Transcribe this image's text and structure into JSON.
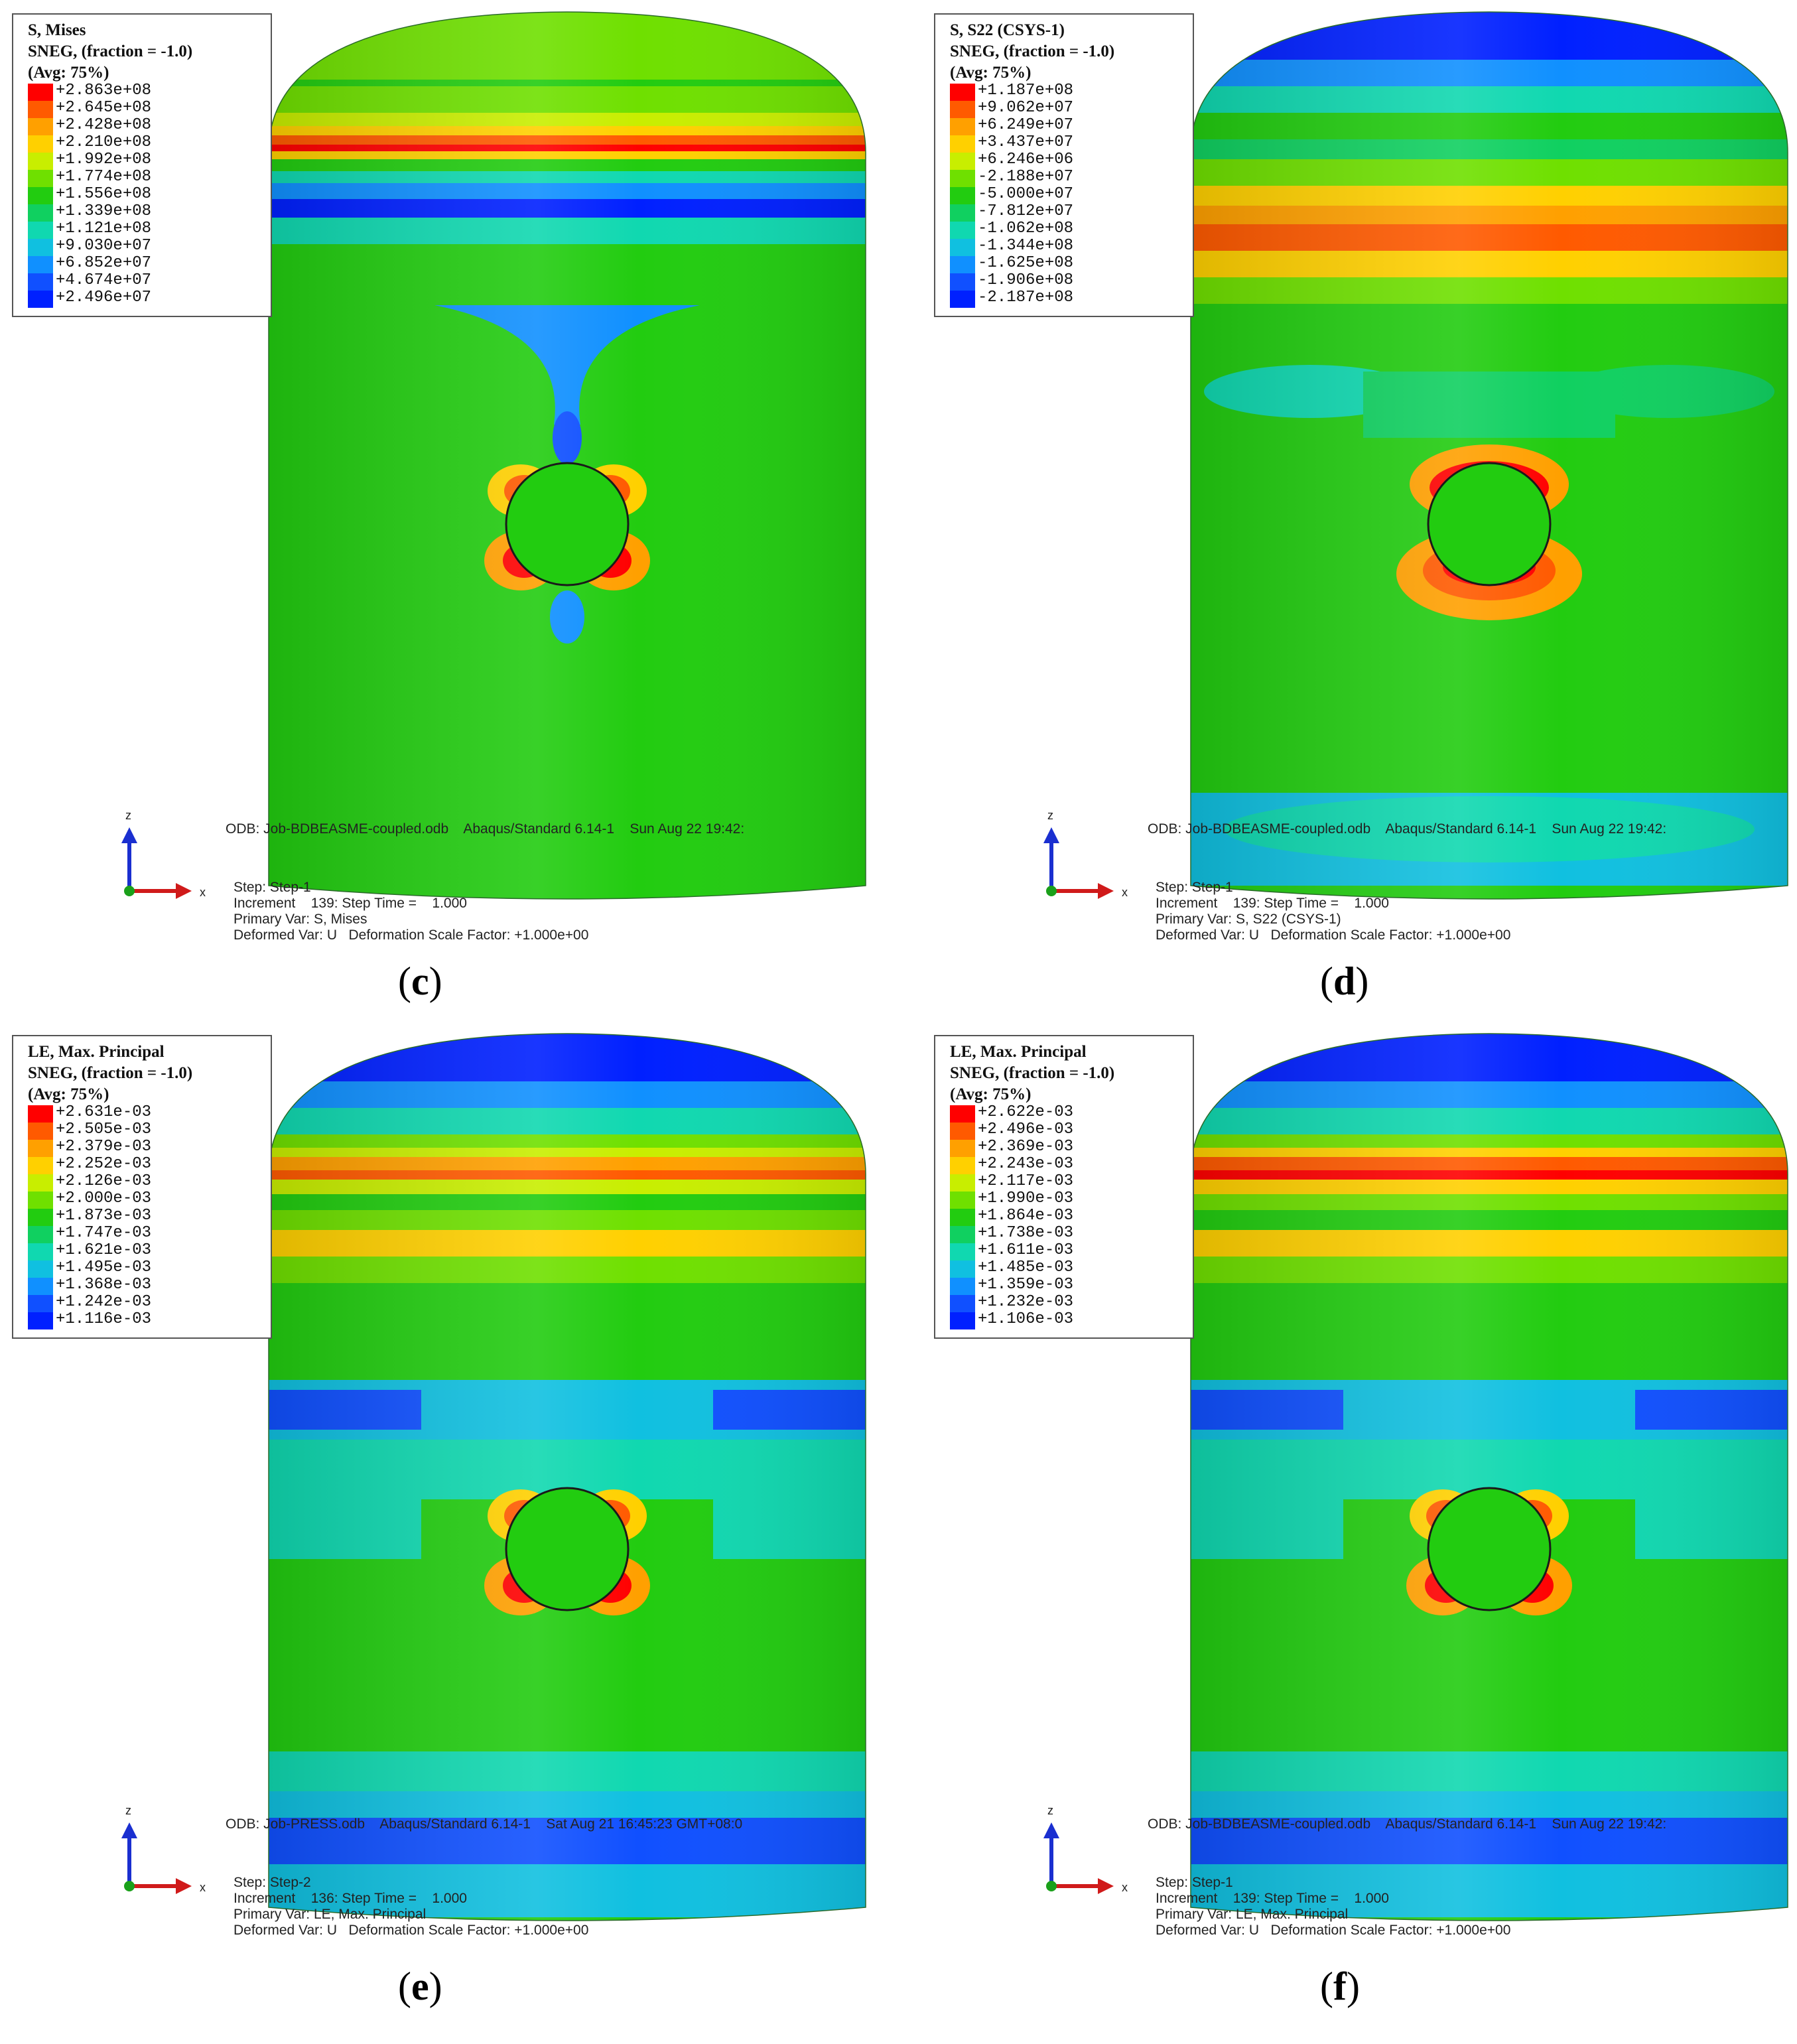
{
  "colors": [
    "#ff0000",
    "#ff5a00",
    "#ffa000",
    "#ffd000",
    "#c8ee00",
    "#6fe000",
    "#22cc10",
    "#10d060",
    "#10d8b0",
    "#10c0e0",
    "#1090ff",
    "#1050ff",
    "#0020ff"
  ],
  "panels": [
    {
      "id": "c",
      "legend": {
        "title1": "S, Mises",
        "title2": "SNEG, (fraction = -1.0)",
        "title3": "(Avg: 75%)",
        "values": [
          "+2.863e+08",
          "+2.645e+08",
          "+2.428e+08",
          "+2.210e+08",
          "+1.992e+08",
          "+1.774e+08",
          "+1.556e+08",
          "+1.339e+08",
          "+1.121e+08",
          "+9.030e+07",
          "+6.852e+07",
          "+4.674e+07",
          "+2.496e+07"
        ]
      },
      "odb": "ODB: Job-BDBEASME-coupled.odb    Abaqus/Standard 6.14-1    Sun Aug 22 19:42:",
      "step": "Step: Step-1",
      "increment": "Increment    139: Step Time =    1.000",
      "primary": "Primary Var: S, Mises",
      "deformed": "Deformed Var: U   Deformation Scale Factor: +1.000e+00",
      "caption": "c",
      "axis_z": "z",
      "axis_x": "x"
    },
    {
      "id": "d",
      "legend": {
        "title1": "S, S22 (CSYS-1)",
        "title2": "SNEG, (fraction = -1.0)",
        "title3": "(Avg: 75%)",
        "values": [
          "+1.187e+08",
          "+9.062e+07",
          "+6.249e+07",
          "+3.437e+07",
          "+6.246e+06",
          "-2.188e+07",
          "-5.000e+07",
          "-7.812e+07",
          "-1.062e+08",
          "-1.344e+08",
          "-1.625e+08",
          "-1.906e+08",
          "-2.187e+08"
        ]
      },
      "odb": "ODB: Job-BDBEASME-coupled.odb    Abaqus/Standard 6.14-1    Sun Aug 22 19:42:",
      "step": "Step: Step-1",
      "increment": "Increment    139: Step Time =    1.000",
      "primary": "Primary Var: S, S22 (CSYS-1)",
      "deformed": "Deformed Var: U   Deformation Scale Factor: +1.000e+00",
      "caption": "d",
      "axis_z": "z",
      "axis_x": "x"
    },
    {
      "id": "e",
      "legend": {
        "title1": "LE, Max. Principal",
        "title2": "SNEG, (fraction = -1.0)",
        "title3": "(Avg: 75%)",
        "values": [
          "+2.631e-03",
          "+2.505e-03",
          "+2.379e-03",
          "+2.252e-03",
          "+2.126e-03",
          "+2.000e-03",
          "+1.873e-03",
          "+1.747e-03",
          "+1.621e-03",
          "+1.495e-03",
          "+1.368e-03",
          "+1.242e-03",
          "+1.116e-03"
        ]
      },
      "odb": "ODB: Job-PRESS.odb    Abaqus/Standard 6.14-1    Sat Aug 21 16:45:23 GMT+08:0",
      "step": "Step: Step-2",
      "increment": "Increment    136: Step Time =    1.000",
      "primary": "Primary Var: LE, Max. Principal",
      "deformed": "Deformed Var: U   Deformation Scale Factor: +1.000e+00",
      "caption": "e",
      "axis_z": "z",
      "axis_x": "x"
    },
    {
      "id": "f",
      "legend": {
        "title1": "LE, Max. Principal",
        "title2": "SNEG, (fraction = -1.0)",
        "title3": "(Avg: 75%)",
        "values": [
          "+2.622e-03",
          "+2.496e-03",
          "+2.369e-03",
          "+2.243e-03",
          "+2.117e-03",
          "+1.990e-03",
          "+1.864e-03",
          "+1.738e-03",
          "+1.611e-03",
          "+1.485e-03",
          "+1.359e-03",
          "+1.232e-03",
          "+1.106e-03"
        ]
      },
      "odb": "ODB: Job-BDBEASME-coupled.odb    Abaqus/Standard 6.14-1    Sun Aug 22 19:42:",
      "step": "Step: Step-1",
      "increment": "Increment    139: Step Time =    1.000",
      "primary": "Primary Var: LE, Max. Principal",
      "deformed": "Deformed Var: U   Deformation Scale Factor: +1.000e+00",
      "caption": "f",
      "axis_z": "z",
      "axis_x": "x"
    }
  ]
}
